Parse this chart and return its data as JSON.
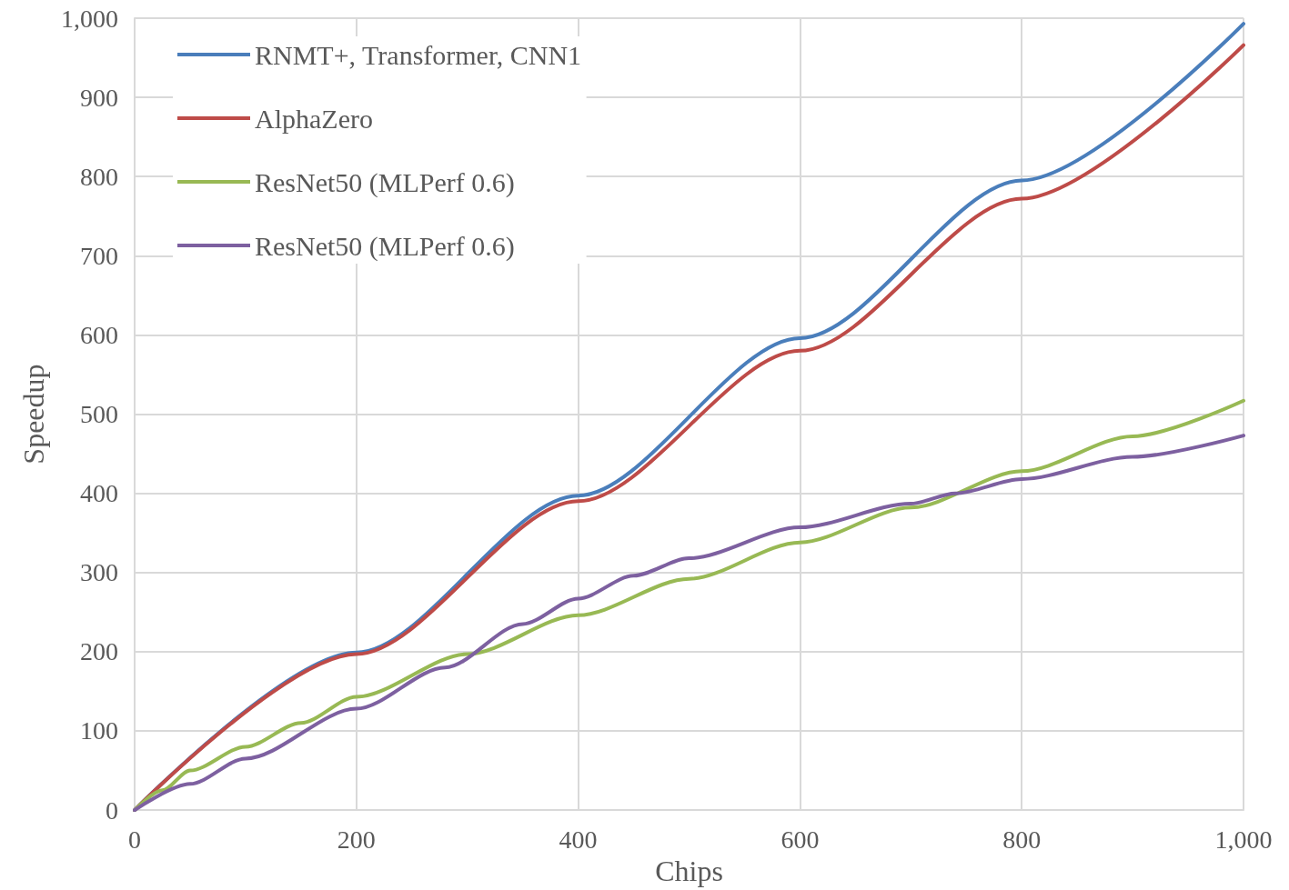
{
  "chart_data": {
    "type": "line",
    "xlabel": "Chips",
    "ylabel": "Speedup",
    "xlim": [
      0,
      1000
    ],
    "ylim": [
      0,
      1000
    ],
    "xticks": [
      0,
      200,
      400,
      600,
      800,
      {
        "value": 1000,
        "label": "1,000"
      }
    ],
    "yticks": [
      0,
      100,
      200,
      300,
      400,
      500,
      600,
      700,
      800,
      900,
      {
        "value": 1000,
        "label": "1,000"
      }
    ],
    "grid": true,
    "legend": "top left",
    "marker": "none",
    "line_style": "solid",
    "series": [
      {
        "name": "RNMT+, Transformer, CNN1",
        "color": "#4a7ebb",
        "x": [
          0,
          200,
          400,
          600,
          800,
          1000
        ],
        "values": [
          0,
          199,
          397,
          596,
          795,
          993
        ]
      },
      {
        "name": "AlphaZero",
        "color": "#be4b48",
        "x": [
          0,
          200,
          400,
          600,
          800,
          1000
        ],
        "values": [
          0,
          197,
          390,
          580,
          772,
          966
        ]
      },
      {
        "name": "ResNet50 (MLPerf 0.6)",
        "color": "#98b954",
        "x": [
          0,
          25,
          50,
          100,
          150,
          200,
          300,
          400,
          500,
          600,
          700,
          800,
          900,
          1000
        ],
        "values": [
          0,
          25,
          50,
          80,
          110,
          143,
          197,
          246,
          292,
          338,
          382,
          428,
          472,
          517
        ]
      },
      {
        "name": "ResNet50 (MLPerf 0.6) ",
        "color": "#7d60a0",
        "x": [
          0,
          50,
          100,
          200,
          280,
          350,
          400,
          450,
          500,
          600,
          700,
          740,
          800,
          900,
          1000
        ],
        "values": [
          0,
          33,
          65,
          128,
          180,
          235,
          267,
          296,
          318,
          357,
          387,
          400,
          418,
          446,
          473
        ]
      }
    ]
  }
}
